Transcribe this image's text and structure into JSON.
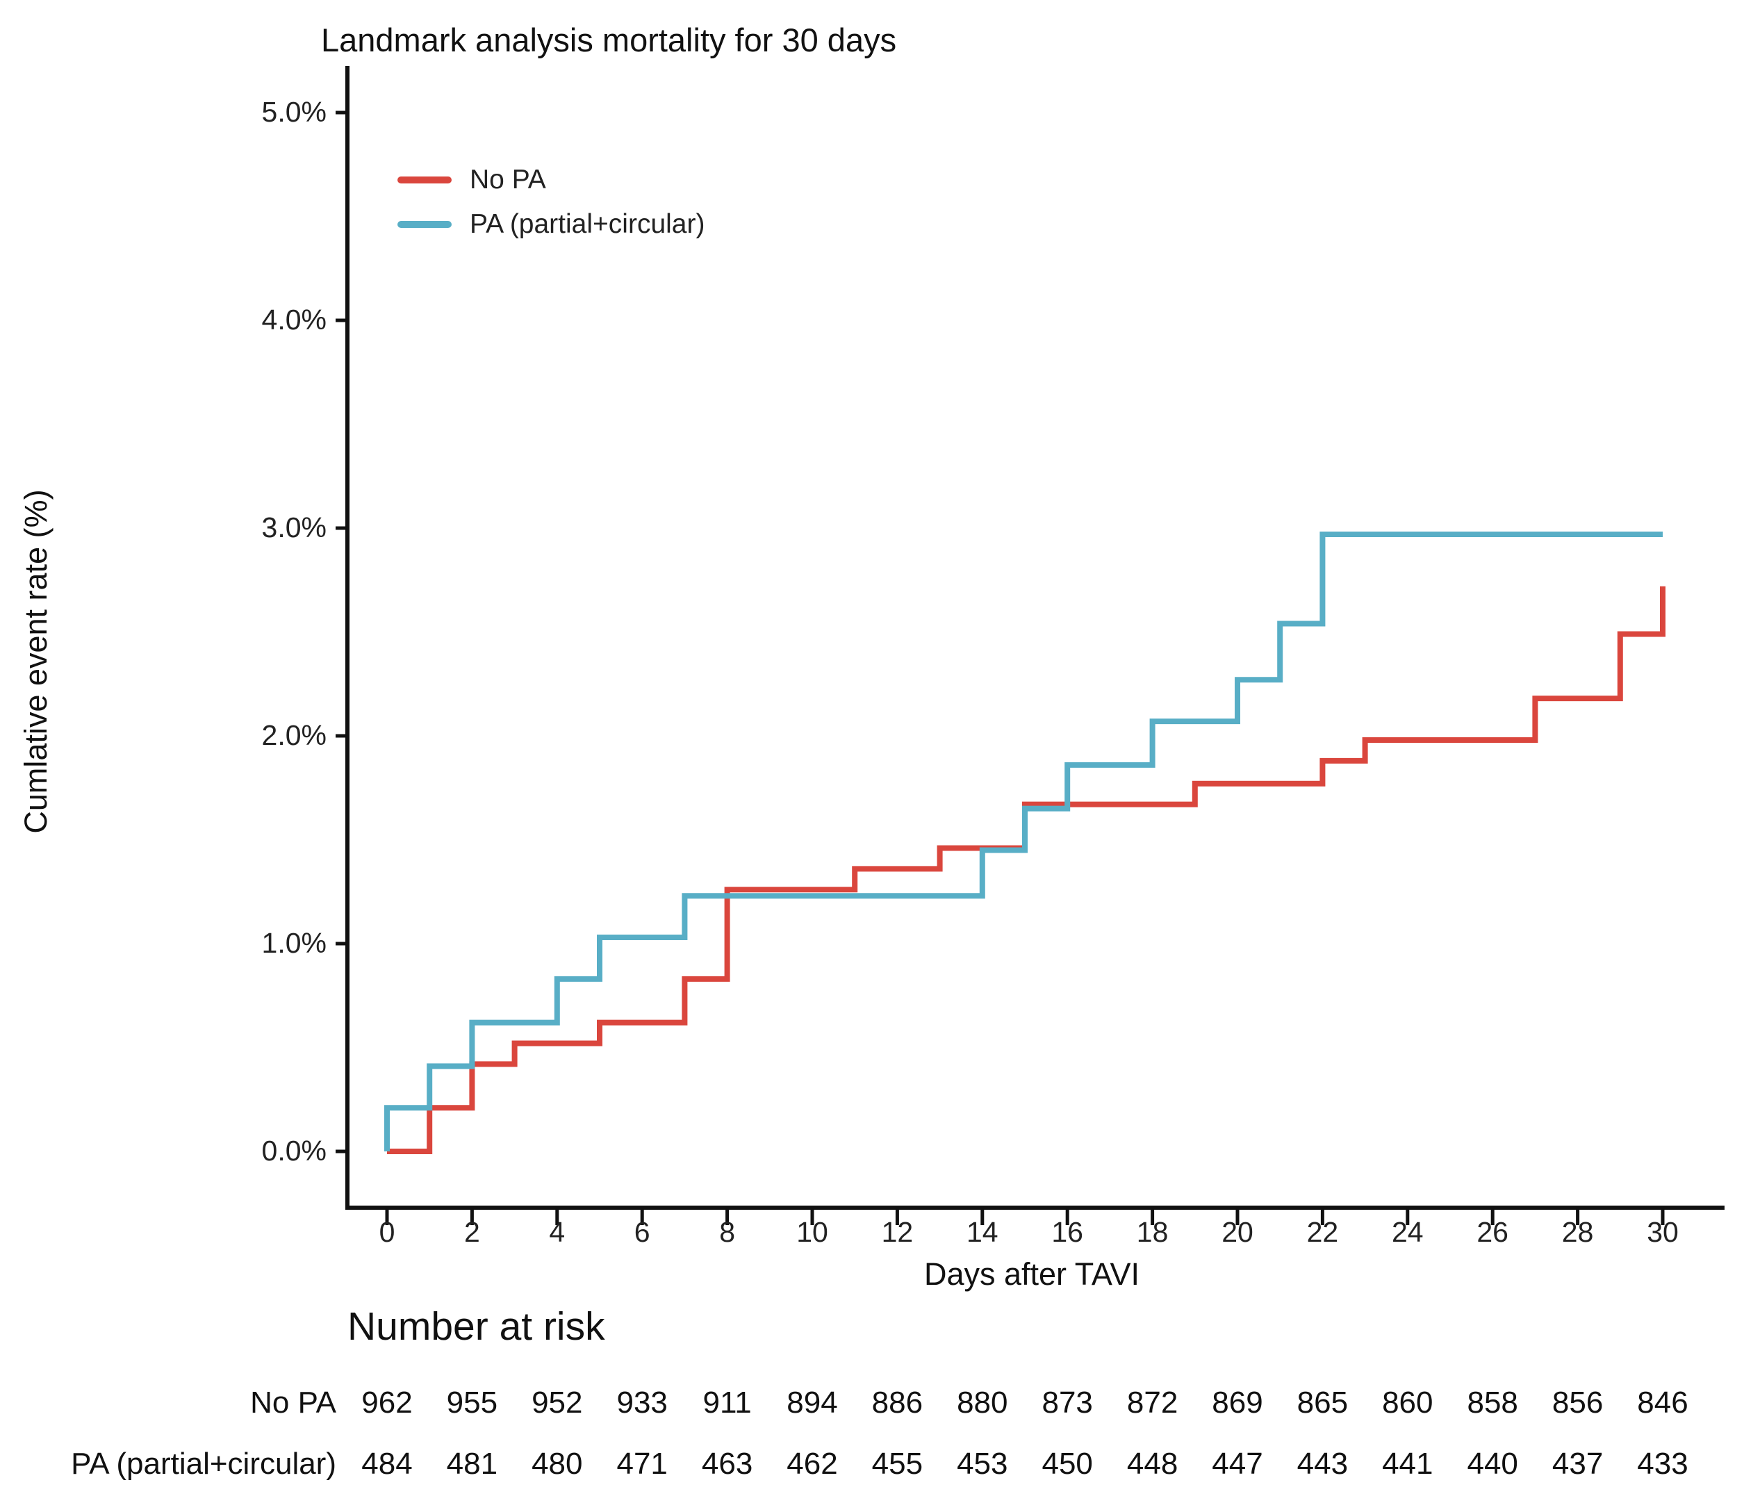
{
  "title": "Landmark analysis mortality for 30 days",
  "y_axis": {
    "label": "Cumlative event rate (%)",
    "ticks": [
      "0.0%",
      "1.0%",
      "2.0%",
      "3.0%",
      "4.0%",
      "5.0%"
    ],
    "tick_values_percent": [
      0,
      1,
      2,
      3,
      4,
      5
    ]
  },
  "x_axis": {
    "label": "Days after TAVI",
    "ticks": [
      0,
      2,
      4,
      6,
      8,
      10,
      12,
      14,
      16,
      18,
      20,
      22,
      24,
      26,
      28,
      30
    ]
  },
  "legend": [
    {
      "label": "No PA",
      "color": "#DA463D"
    },
    {
      "label": "PA (partial+circular)",
      "color": "#58AEC6"
    }
  ],
  "chart_data": {
    "type": "line",
    "variant": "kaplan-meier-step",
    "title": "Landmark analysis mortality for 30 days",
    "xlabel": "Days after TAVI",
    "ylabel": "Cumlative event rate (%)",
    "xlim": [
      0,
      30
    ],
    "ylim_percent": [
      0,
      5
    ],
    "x_ticks": [
      0,
      2,
      4,
      6,
      8,
      10,
      12,
      14,
      16,
      18,
      20,
      22,
      24,
      26,
      28,
      30
    ],
    "y_ticks_percent": [
      0,
      1,
      2,
      3,
      4,
      5
    ],
    "grid": false,
    "legend_position": "inside-top-left",
    "series": [
      {
        "name": "No PA",
        "color": "#DA463D",
        "start": [
          0,
          0
        ],
        "steps": [
          [
            1,
            0.21
          ],
          [
            2,
            0.42
          ],
          [
            3,
            0.52
          ],
          [
            5,
            0.62
          ],
          [
            7,
            0.83
          ],
          [
            8,
            1.26
          ],
          [
            11,
            1.36
          ],
          [
            13,
            1.46
          ],
          [
            15,
            1.67
          ],
          [
            19,
            1.77
          ],
          [
            22,
            1.88
          ],
          [
            23,
            1.98
          ],
          [
            27,
            2.18
          ],
          [
            29,
            2.49
          ],
          [
            30,
            2.72
          ]
        ],
        "end_day": 30,
        "final_value_percent": 2.72
      },
      {
        "name": "PA (partial+circular)",
        "color": "#58AEC6",
        "start": [
          0,
          0
        ],
        "steps": [
          [
            0,
            0.21
          ],
          [
            1,
            0.41
          ],
          [
            2,
            0.62
          ],
          [
            4,
            0.83
          ],
          [
            5,
            1.03
          ],
          [
            7,
            1.23
          ],
          [
            14,
            1.45
          ],
          [
            15,
            1.65
          ],
          [
            16,
            1.86
          ],
          [
            18,
            2.07
          ],
          [
            20,
            2.27
          ],
          [
            21,
            2.54
          ],
          [
            22,
            2.97
          ]
        ],
        "end_day": 30,
        "final_value_percent": 2.97
      }
    ]
  },
  "risk_table": {
    "heading": "Number at risk",
    "days": [
      0,
      2,
      4,
      6,
      8,
      10,
      12,
      14,
      16,
      18,
      20,
      22,
      24,
      26,
      28,
      30
    ],
    "rows": [
      {
        "label": "No PA",
        "values": [
          962,
          955,
          952,
          933,
          911,
          894,
          886,
          880,
          873,
          872,
          869,
          865,
          860,
          858,
          856,
          846
        ]
      },
      {
        "label": "PA (partial+circular)",
        "values": [
          484,
          481,
          480,
          471,
          463,
          462,
          455,
          453,
          450,
          448,
          447,
          443,
          441,
          440,
          437,
          433
        ]
      }
    ]
  },
  "colors": {
    "axis": "#111111",
    "text": "#1a1a1a",
    "background": "#ffffff"
  }
}
